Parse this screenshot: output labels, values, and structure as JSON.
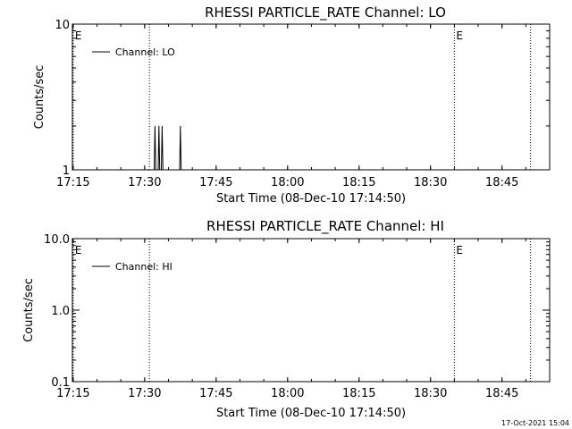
{
  "chart_data": [
    {
      "type": "line",
      "title": "RHESSI PARTICLE_RATE Channel: LO",
      "xlabel": "Start Time (08-Dec-10 17:14:50)",
      "ylabel": "Counts/sec",
      "x_tick_labels": [
        "17:15",
        "17:30",
        "17:45",
        "18:00",
        "18:15",
        "18:30",
        "18:45"
      ],
      "x_tick_values": [
        "17:15",
        "17:30",
        "17:45",
        "18:00",
        "18:15",
        "18:30",
        "18:45"
      ],
      "xlim": [
        "17:14:50",
        "18:55"
      ],
      "yscale": "log",
      "ylim": [
        1,
        10
      ],
      "y_tick_labels": [
        "1",
        "10"
      ],
      "y_tick_values": [
        1,
        10
      ],
      "grid": false,
      "legend_position": "top-left",
      "series": [
        {
          "name": "Channel: LO",
          "points": [
            [
              "17:32:00",
              1
            ],
            [
              "17:32:10",
              2
            ],
            [
              "17:32:20",
              1
            ],
            [
              "17:32:50",
              1
            ],
            [
              "17:33:00",
              2
            ],
            [
              "17:33:10",
              1
            ],
            [
              "17:33:30",
              1
            ],
            [
              "17:33:40",
              2
            ],
            [
              "17:33:50",
              1
            ],
            [
              "17:37:20",
              1
            ],
            [
              "17:37:30",
              2
            ],
            [
              "17:37:40",
              1
            ]
          ]
        }
      ],
      "vertical_markers": [
        {
          "time": "17:15",
          "label": "E"
        },
        {
          "time": "17:31",
          "label": ""
        },
        {
          "time": "18:35",
          "label": "E"
        },
        {
          "time": "18:51",
          "label": ""
        }
      ]
    },
    {
      "type": "line",
      "title": "RHESSI PARTICLE_RATE Channel: HI",
      "xlabel": "Start Time (08-Dec-10 17:14:50)",
      "ylabel": "Counts/sec",
      "x_tick_labels": [
        "17:15",
        "17:30",
        "17:45",
        "18:00",
        "18:15",
        "18:30",
        "18:45"
      ],
      "x_tick_values": [
        "17:15",
        "17:30",
        "17:45",
        "18:00",
        "18:15",
        "18:30",
        "18:45"
      ],
      "xlim": [
        "17:14:50",
        "18:55"
      ],
      "yscale": "log",
      "ylim": [
        0.1,
        10
      ],
      "y_tick_labels": [
        "0.1",
        "1.0",
        "10.0"
      ],
      "y_tick_values": [
        0.1,
        1,
        10
      ],
      "grid": false,
      "legend_position": "top-left",
      "series": [
        {
          "name": "Channel: HI",
          "points": []
        }
      ],
      "vertical_markers": [
        {
          "time": "17:15",
          "label": "E"
        },
        {
          "time": "17:31",
          "label": ""
        },
        {
          "time": "18:35",
          "label": "E"
        },
        {
          "time": "18:51",
          "label": ""
        }
      ]
    }
  ],
  "footer": {
    "timestamp": "17-Oct-2021 15:04"
  }
}
